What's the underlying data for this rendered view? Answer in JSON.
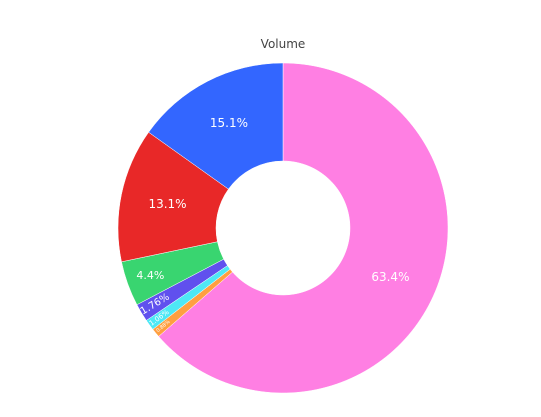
{
  "chart_data": {
    "type": "pie",
    "title": "Volume",
    "hole": true,
    "direction": "clockwise",
    "start": "top",
    "slices": [
      {
        "label": "63.4%",
        "value": 63.4,
        "color": "#FF7FE3"
      },
      {
        "label": "0.88%",
        "value": 0.88,
        "color": "#FF9F40"
      },
      {
        "label": "1.06%",
        "value": 1.06,
        "color": "#4DE8F5"
      },
      {
        "label": "1.76%",
        "value": 1.76,
        "color": "#6050EE"
      },
      {
        "label": "4.4%",
        "value": 4.4,
        "color": "#39D570"
      },
      {
        "label": "13.1%",
        "value": 13.1,
        "color": "#E82828"
      },
      {
        "label": "15.1%",
        "value": 15.1,
        "color": "#3366FF"
      }
    ]
  }
}
